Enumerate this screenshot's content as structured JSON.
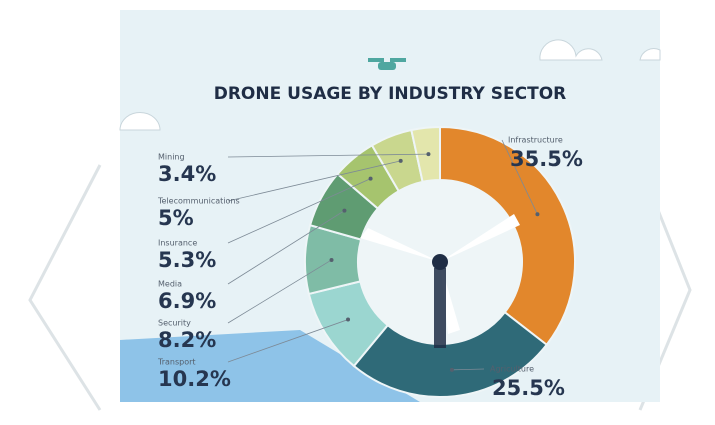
{
  "chart_data": {
    "type": "pie",
    "title": "DRONE USAGE BY INDUSTRY SECTOR",
    "categories": [
      "Infrastructure",
      "Agriculture",
      "Transport",
      "Security",
      "Media",
      "Insurance",
      "Telecommunications",
      "Mining"
    ],
    "values": [
      35.5,
      25.5,
      10.2,
      8.2,
      6.9,
      5.3,
      5,
      3.4
    ],
    "value_labels": [
      "35.5%",
      "25.5%",
      "10.2%",
      "8.2%",
      "6.9%",
      "5.3%",
      "5%",
      "3.4%"
    ],
    "colors": [
      "#e2872c",
      "#2f6a78",
      "#9bd6d0",
      "#7fbca6",
      "#5f9c72",
      "#a6c46e",
      "#c9d78e",
      "#e3e6ac"
    ]
  }
}
